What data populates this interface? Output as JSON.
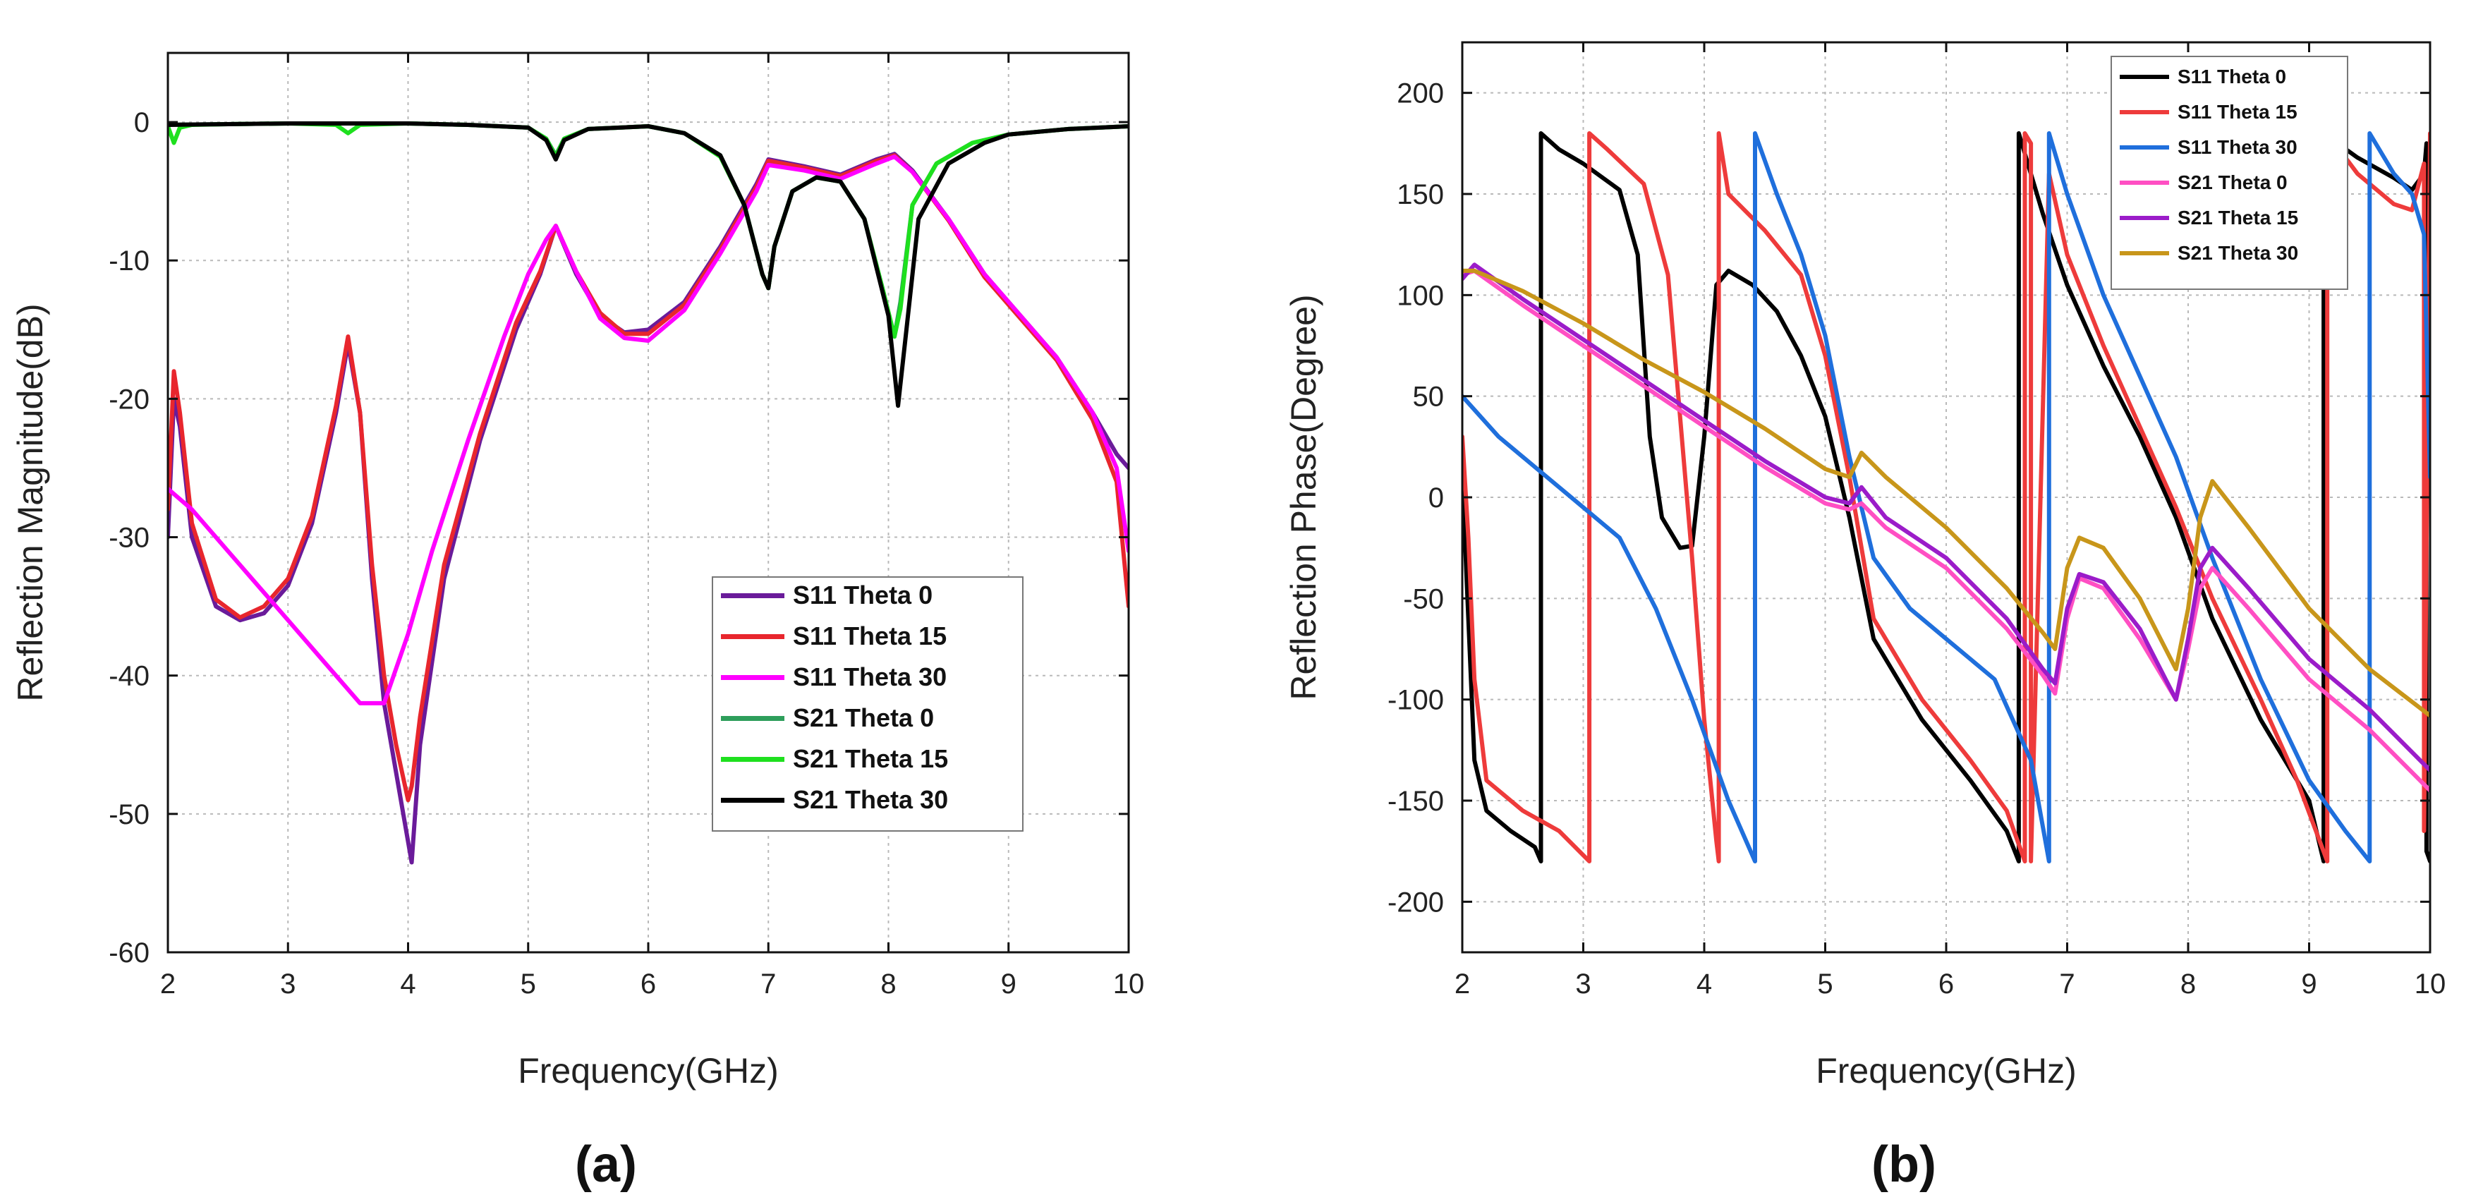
{
  "chart_data": [
    {
      "type": "line",
      "panel_label": "(a)",
      "xlabel": "Frequency(GHz)",
      "ylabel": "Reflection Magnitude(dB)",
      "xlim": [
        2,
        10
      ],
      "ylim": [
        -60,
        5
      ],
      "xticks": [
        2,
        3,
        4,
        5,
        6,
        7,
        8,
        9,
        10
      ],
      "yticks": [
        0,
        -10,
        -20,
        -30,
        -40,
        -50,
        -60
      ],
      "grid": true,
      "legend_position": "lower-right",
      "series": [
        {
          "name": "S11 Theta 0",
          "color": "#6a1b9a",
          "x": [
            2.0,
            2.05,
            2.1,
            2.2,
            2.4,
            2.6,
            2.8,
            3.0,
            3.2,
            3.4,
            3.5,
            3.6,
            3.7,
            3.8,
            3.9,
            4.0,
            4.03,
            4.1,
            4.3,
            4.6,
            4.9,
            5.1,
            5.23,
            5.4,
            5.6,
            5.8,
            6.0,
            6.3,
            6.6,
            6.9,
            7.0,
            7.3,
            7.6,
            7.9,
            8.05,
            8.2,
            8.5,
            8.8,
            9.1,
            9.4,
            9.7,
            9.9,
            10.0
          ],
          "y": [
            -30,
            -20,
            -22,
            -30,
            -35,
            -36,
            -35.5,
            -33.5,
            -29,
            -21,
            -16,
            -21,
            -33,
            -42,
            -47,
            -52,
            -53.5,
            -45,
            -33,
            -23,
            -15,
            -11,
            -7.5,
            -11,
            -14,
            -15.2,
            -15,
            -13,
            -9,
            -4.5,
            -2.7,
            -3.2,
            -3.8,
            -2.7,
            -2.3,
            -3.5,
            -7,
            -11,
            -14,
            -17,
            -21,
            -24,
            -25
          ]
        },
        {
          "name": "S11 Theta 15",
          "color": "#e8262d",
          "x": [
            2.0,
            2.05,
            2.1,
            2.2,
            2.4,
            2.6,
            2.8,
            3.0,
            3.2,
            3.4,
            3.5,
            3.6,
            3.7,
            3.8,
            3.9,
            4.0,
            4.03,
            4.1,
            4.3,
            4.6,
            4.9,
            5.1,
            5.23,
            5.4,
            5.6,
            5.8,
            6.0,
            6.3,
            6.6,
            6.9,
            7.0,
            7.3,
            7.6,
            7.9,
            8.05,
            8.2,
            8.5,
            8.8,
            9.1,
            9.4,
            9.7,
            9.9,
            10.0
          ],
          "y": [
            -28,
            -18,
            -21,
            -29,
            -34.5,
            -35.8,
            -35,
            -33,
            -28.5,
            -20.5,
            -15.5,
            -21,
            -32,
            -40,
            -45,
            -49,
            -48,
            -43,
            -32,
            -22.5,
            -14.5,
            -10.8,
            -7.5,
            -10.8,
            -13.8,
            -15.3,
            -15.3,
            -13.2,
            -9.2,
            -4.7,
            -2.8,
            -3.3,
            -3.9,
            -2.8,
            -2.4,
            -3.6,
            -7.1,
            -11.2,
            -14.2,
            -17.2,
            -21.5,
            -26,
            -35
          ]
        },
        {
          "name": "S11 Theta 30",
          "color": "#ff00ff",
          "x": [
            2.0,
            2.2,
            2.5,
            2.8,
            3.0,
            3.3,
            3.6,
            3.8,
            4.0,
            4.2,
            4.5,
            4.8,
            5.0,
            5.15,
            5.23,
            5.4,
            5.6,
            5.8,
            6.0,
            6.3,
            6.6,
            6.9,
            7.0,
            7.3,
            7.6,
            7.9,
            8.05,
            8.2,
            8.5,
            8.8,
            9.1,
            9.4,
            9.7,
            9.9,
            10.0
          ],
          "y": [
            -26.5,
            -28,
            -31,
            -34,
            -36,
            -39,
            -42,
            -42,
            -37,
            -31,
            -23,
            -15.5,
            -11,
            -8.5,
            -7.5,
            -10.8,
            -14.2,
            -15.6,
            -15.8,
            -13.6,
            -9.5,
            -5,
            -3.1,
            -3.5,
            -4.1,
            -3,
            -2.5,
            -3.6,
            -7,
            -11,
            -14,
            -17,
            -21,
            -25,
            -31
          ]
        },
        {
          "name": "S21 Theta 0",
          "color": "#2e9e5b",
          "x": [
            2.0,
            2.5,
            3.0,
            3.5,
            4.0,
            4.5,
            5.0,
            5.15,
            5.23,
            5.3,
            5.5,
            6.0,
            6.3,
            6.6,
            6.8,
            6.95,
            7.0,
            7.05,
            7.2,
            7.4,
            7.6,
            7.8,
            7.95,
            8.05,
            8.1,
            8.2,
            8.4,
            8.7,
            9.0,
            9.5,
            10.0
          ],
          "y": [
            -0.2,
            -0.15,
            -0.1,
            -0.1,
            -0.1,
            -0.2,
            -0.4,
            -1.2,
            -2.4,
            -1.2,
            -0.5,
            -0.3,
            -0.8,
            -2.4,
            -6,
            -11,
            -12,
            -9,
            -5,
            -4,
            -4.3,
            -7,
            -12,
            -15.5,
            -13,
            -6,
            -3,
            -1.5,
            -0.9,
            -0.5,
            -0.3
          ]
        },
        {
          "name": "S21 Theta 15",
          "color": "#1ee01e",
          "x": [
            2.0,
            2.05,
            2.1,
            2.2,
            2.5,
            3.0,
            3.4,
            3.5,
            3.6,
            4.0,
            4.5,
            5.0,
            5.15,
            5.23,
            5.3,
            5.5,
            6.0,
            6.3,
            6.6,
            6.8,
            6.95,
            7.0,
            7.05,
            7.2,
            7.4,
            7.6,
            7.8,
            7.95,
            8.05,
            8.1,
            8.2,
            8.4,
            8.7,
            9.0,
            9.5,
            10.0
          ],
          "y": [
            -0.3,
            -1.5,
            -0.4,
            -0.2,
            -0.15,
            -0.1,
            -0.2,
            -0.8,
            -0.2,
            -0.1,
            -0.2,
            -0.4,
            -1.2,
            -2.5,
            -1.2,
            -0.5,
            -0.3,
            -0.8,
            -2.5,
            -6,
            -11,
            -12,
            -9,
            -5,
            -4,
            -4.3,
            -7,
            -12,
            -15.5,
            -13.5,
            -6,
            -3,
            -1.5,
            -0.9,
            -0.5,
            -0.3
          ]
        },
        {
          "name": "S21 Theta 30",
          "color": "#000000",
          "x": [
            2.0,
            2.5,
            3.0,
            3.5,
            4.0,
            4.5,
            5.0,
            5.15,
            5.23,
            5.3,
            5.5,
            6.0,
            6.3,
            6.6,
            6.8,
            6.95,
            7.0,
            7.05,
            7.2,
            7.4,
            7.6,
            7.8,
            8.0,
            8.08,
            8.15,
            8.25,
            8.5,
            8.8,
            9.0,
            9.5,
            10.0
          ],
          "y": [
            -0.2,
            -0.15,
            -0.1,
            -0.1,
            -0.1,
            -0.2,
            -0.4,
            -1.3,
            -2.7,
            -1.3,
            -0.5,
            -0.3,
            -0.8,
            -2.4,
            -6,
            -11,
            -12,
            -9,
            -5,
            -4,
            -4.3,
            -7,
            -14,
            -20.5,
            -15,
            -7,
            -3,
            -1.5,
            -0.9,
            -0.5,
            -0.3
          ]
        }
      ]
    },
    {
      "type": "line",
      "panel_label": "(b)",
      "xlabel": "Frequency(GHz)",
      "ylabel": "Reflection Phase(Degree)",
      "xlim": [
        2,
        10
      ],
      "ylim": [
        -225,
        225
      ],
      "xticks": [
        2,
        3,
        4,
        5,
        6,
        7,
        8,
        9,
        10
      ],
      "yticks": [
        200,
        150,
        100,
        50,
        0,
        -50,
        -100,
        -150,
        -200
      ],
      "grid": true,
      "legend_position": "top-right",
      "series": [
        {
          "name": "S11 Theta 0",
          "color": "#000000",
          "x": [
            2.0,
            2.05,
            2.1,
            2.2,
            2.4,
            2.6,
            2.65,
            2.65,
            2.8,
            3.0,
            3.3,
            3.45,
            3.55,
            3.65,
            3.8,
            3.9,
            4.0,
            4.1,
            4.2,
            4.4,
            4.6,
            4.8,
            5.0,
            5.2,
            5.4,
            5.8,
            6.2,
            6.5,
            6.6,
            6.6,
            6.8,
            7.0,
            7.3,
            7.6,
            7.9,
            8.2,
            8.6,
            9.0,
            9.12,
            9.12,
            9.4,
            9.7,
            9.85,
            9.95,
            9.97,
            9.97,
            10.0
          ],
          "y": [
            10,
            -60,
            -130,
            -155,
            -165,
            -173,
            -180,
            180,
            172,
            165,
            152,
            120,
            30,
            -10,
            -25,
            -24,
            30,
            105,
            112,
            105,
            92,
            70,
            40,
            -10,
            -70,
            -110,
            -140,
            -165,
            -180,
            180,
            140,
            105,
            65,
            30,
            -10,
            -60,
            -110,
            -150,
            -180,
            180,
            168,
            158,
            152,
            160,
            175,
            -175,
            -180
          ]
        },
        {
          "name": "S11 Theta 15",
          "color": "#ee3b3b",
          "x": [
            2.0,
            2.05,
            2.1,
            2.2,
            2.5,
            2.8,
            3.05,
            3.05,
            3.2,
            3.5,
            3.7,
            3.9,
            4.0,
            4.1,
            4.12,
            4.12,
            4.2,
            4.5,
            4.8,
            5.0,
            5.2,
            5.4,
            5.8,
            6.2,
            6.5,
            6.65,
            6.65,
            6.7,
            6.7,
            6.85,
            7.0,
            7.3,
            7.6,
            7.9,
            8.2,
            8.6,
            8.9,
            9.15,
            9.15,
            9.4,
            9.7,
            9.85,
            9.95,
            9.95,
            10.0
          ],
          "y": [
            30,
            -20,
            -90,
            -140,
            -155,
            -165,
            -180,
            180,
            172,
            155,
            110,
            -30,
            -110,
            -170,
            -180,
            180,
            150,
            132,
            110,
            70,
            10,
            -60,
            -100,
            -130,
            -155,
            -180,
            180,
            175,
            -180,
            160,
            120,
            75,
            35,
            -5,
            -50,
            -100,
            -140,
            -180,
            180,
            160,
            145,
            142,
            165,
            -165,
            180
          ]
        },
        {
          "name": "S11 Theta 30",
          "color": "#1f6fdc",
          "x": [
            2.0,
            2.3,
            2.6,
            3.0,
            3.3,
            3.6,
            3.9,
            4.2,
            4.42,
            4.42,
            4.6,
            4.8,
            5.0,
            5.2,
            5.4,
            5.7,
            6.0,
            6.4,
            6.7,
            6.85,
            6.85,
            7.0,
            7.3,
            7.6,
            7.9,
            8.2,
            8.6,
            9.0,
            9.3,
            9.5,
            9.5,
            9.7,
            9.85,
            9.95,
            10.0
          ],
          "y": [
            50,
            30,
            15,
            -5,
            -20,
            -55,
            -100,
            -150,
            -180,
            180,
            150,
            120,
            80,
            20,
            -30,
            -55,
            -70,
            -90,
            -130,
            -180,
            180,
            150,
            100,
            60,
            20,
            -30,
            -90,
            -140,
            -165,
            -180,
            180,
            160,
            150,
            130,
            10
          ]
        },
        {
          "name": "S21 Theta 0",
          "color": "#ff4fc3",
          "x": [
            2.0,
            2.1,
            2.5,
            3.0,
            3.5,
            4.0,
            4.5,
            5.0,
            5.2,
            5.3,
            5.5,
            6.0,
            6.5,
            6.8,
            6.9,
            7.0,
            7.1,
            7.3,
            7.6,
            7.9,
            8.0,
            8.1,
            8.2,
            8.5,
            9.0,
            9.5,
            10.0
          ],
          "y": [
            110,
            112,
            95,
            75,
            55,
            35,
            15,
            -3,
            -6,
            -3,
            -15,
            -35,
            -65,
            -88,
            -97,
            -60,
            -40,
            -45,
            -70,
            -100,
            -75,
            -45,
            -35,
            -55,
            -90,
            -115,
            -145
          ]
        },
        {
          "name": "S21 Theta 15",
          "color": "#9b1cc9",
          "x": [
            2.0,
            2.1,
            2.5,
            3.0,
            3.5,
            4.0,
            4.5,
            5.0,
            5.2,
            5.3,
            5.5,
            6.0,
            6.5,
            6.8,
            6.9,
            7.0,
            7.1,
            7.3,
            7.6,
            7.9,
            8.0,
            8.1,
            8.2,
            8.5,
            9.0,
            9.5,
            10.0
          ],
          "y": [
            108,
            115,
            98,
            78,
            58,
            38,
            18,
            0,
            -3,
            5,
            -10,
            -30,
            -60,
            -85,
            -92,
            -55,
            -38,
            -42,
            -65,
            -100,
            -70,
            -35,
            -25,
            -45,
            -80,
            -105,
            -135
          ]
        },
        {
          "name": "S21 Theta 30",
          "color": "#c8961a",
          "x": [
            2.0,
            2.1,
            2.5,
            3.0,
            3.5,
            4.0,
            4.5,
            5.0,
            5.2,
            5.3,
            5.5,
            6.0,
            6.5,
            6.8,
            6.9,
            7.0,
            7.1,
            7.3,
            7.6,
            7.9,
            8.0,
            8.1,
            8.2,
            8.5,
            9.0,
            9.5,
            10.0
          ],
          "y": [
            112,
            112,
            102,
            86,
            68,
            52,
            34,
            14,
            10,
            22,
            10,
            -15,
            -45,
            -67,
            -75,
            -35,
            -20,
            -25,
            -50,
            -85,
            -55,
            -10,
            8,
            -15,
            -55,
            -85,
            -108
          ]
        }
      ]
    }
  ]
}
